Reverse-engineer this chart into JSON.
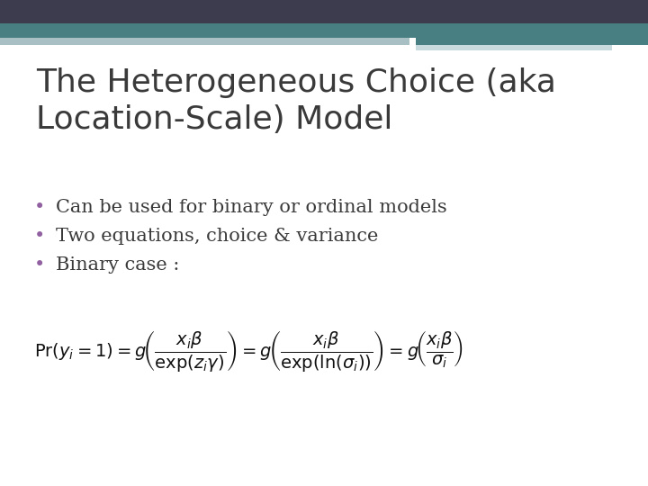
{
  "bg_color": "#ffffff",
  "header_dark_color": "#3d3b4e",
  "header_teal_color": "#477f82",
  "header_light_color": "#a8c0c4",
  "header_light2_color": "#c8dadd",
  "title_line1": "The Heterogeneous Choice (aka",
  "title_line2": "Location-Scale) Model",
  "title_color": "#3a3a3a",
  "title_fontsize": 26,
  "bullet_color": "#9060a0",
  "bullet_text_color": "#3a3a3a",
  "bullet_fontsize": 15,
  "bullets": [
    "Can be used for binary or ordinal models",
    "Two equations, choice & variance",
    "Binary case :"
  ],
  "formula_color": "#111111",
  "formula_fontsize": 14,
  "fig_width": 7.2,
  "fig_height": 5.4,
  "dpi": 100
}
